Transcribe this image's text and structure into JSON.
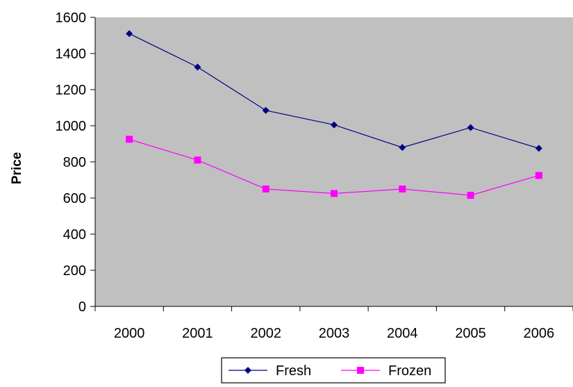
{
  "chart_data": {
    "type": "line",
    "title": "",
    "xlabel": "",
    "ylabel": "Price",
    "categories": [
      "2000",
      "2001",
      "2002",
      "2003",
      "2004",
      "2005",
      "2006"
    ],
    "ylim": [
      0,
      1600
    ],
    "yticks": [
      0,
      200,
      400,
      600,
      800,
      1000,
      1200,
      1400,
      1600
    ],
    "ytick_labels": [
      "0",
      "200",
      "400",
      "600",
      "800",
      "1000",
      "1200",
      "1400",
      "1600"
    ],
    "grid": false,
    "plot_background": "#c0c0c0",
    "legend_position": "bottom",
    "series": [
      {
        "name": "Fresh",
        "color": "#000080",
        "marker": "diamond",
        "values": [
          1510,
          1325,
          1085,
          1005,
          880,
          990,
          875
        ]
      },
      {
        "name": "Frozen",
        "color": "#ff00ff",
        "marker": "square",
        "values": [
          925,
          810,
          650,
          625,
          650,
          615,
          725
        ]
      }
    ]
  }
}
